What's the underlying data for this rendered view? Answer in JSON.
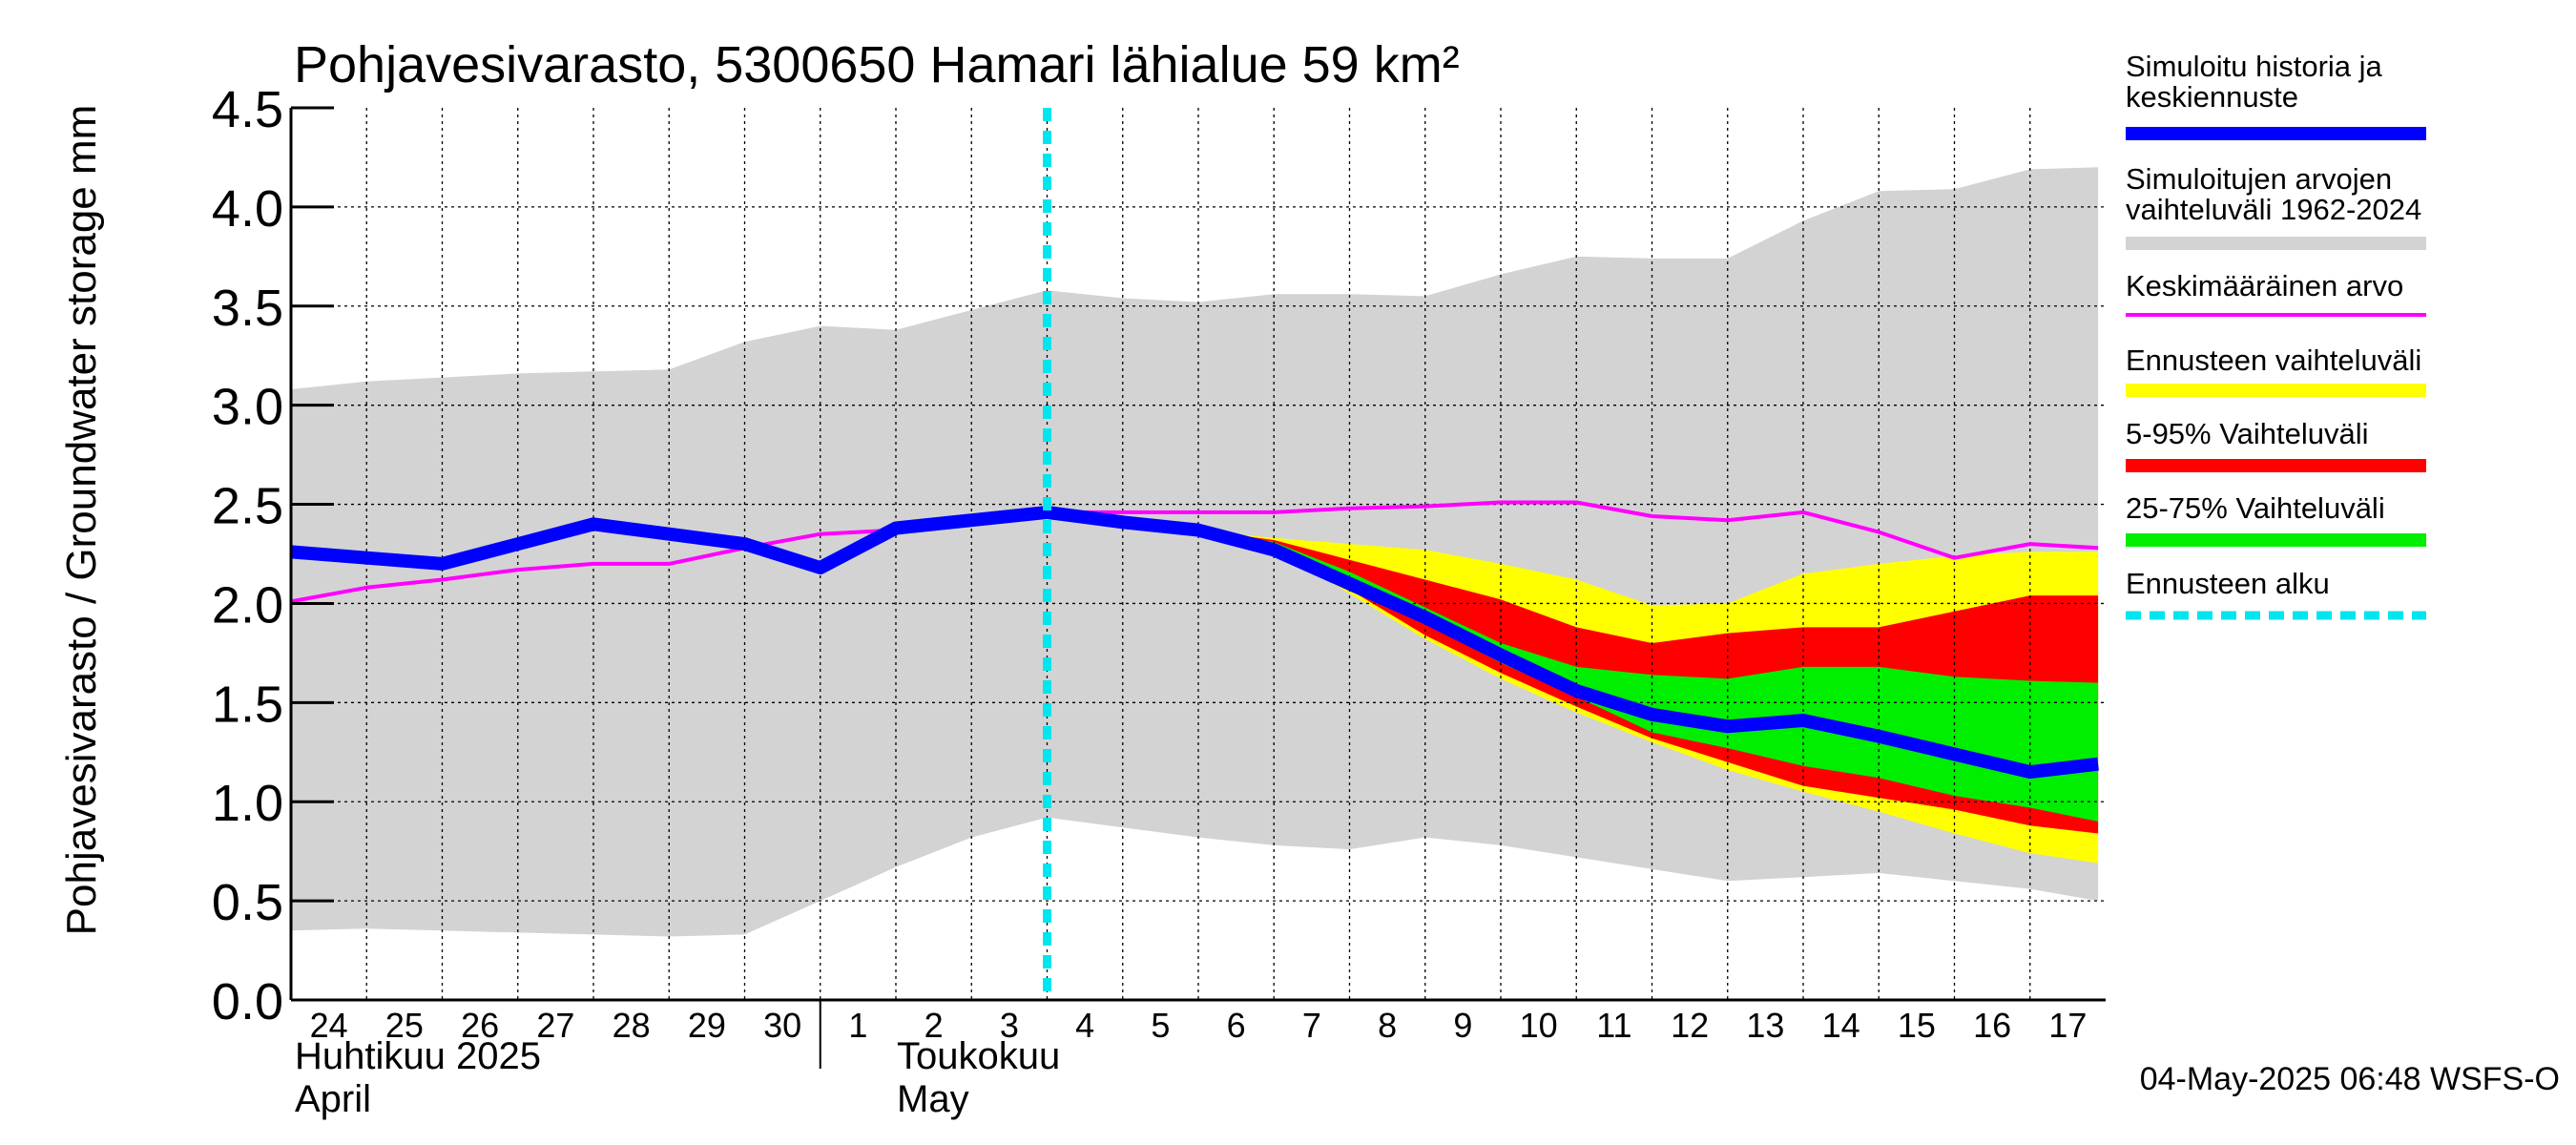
{
  "chart_data": {
    "type": "area",
    "title": "Pohjavesivarasto, 5300650 Hamari lähialue 59 km²",
    "ylabel": "Pohjavesivarasto / Groundwater storage   mm",
    "ylim": [
      0,
      4.5
    ],
    "yticks": [
      "0.0",
      "0.5",
      "1.0",
      "1.5",
      "2.0",
      "2.5",
      "3.0",
      "3.5",
      "4.0",
      "4.5"
    ],
    "x_day_labels": [
      "24",
      "25",
      "26",
      "27",
      "28",
      "29",
      "30",
      "1",
      "2",
      "3",
      "4",
      "5",
      "6",
      "7",
      "8",
      "9",
      "10",
      "11",
      "12",
      "13",
      "14",
      "15",
      "16",
      "17"
    ],
    "month_labels": [
      {
        "fi": "Huhtikuu  2025",
        "en": "April"
      },
      {
        "fi": "Toukokuu",
        "en": "May"
      }
    ],
    "footer": "04-May-2025 06:48 WSFS-O",
    "forecast_start_day": 10.0,
    "series": [
      {
        "name": "Simuloitujen arvojen vaihteluväli 1962-2024",
        "kind": "band",
        "color": "#d3d3d3",
        "x": [
          0,
          1,
          2,
          3,
          4,
          5,
          6,
          7,
          8,
          9,
          10,
          11,
          12,
          13,
          14,
          15,
          16,
          17,
          18,
          19,
          20,
          21,
          22,
          23,
          23.9
        ],
        "upper": [
          3.08,
          3.12,
          3.14,
          3.16,
          3.17,
          3.18,
          3.32,
          3.4,
          3.38,
          3.48,
          3.58,
          3.54,
          3.52,
          3.56,
          3.56,
          3.55,
          3.66,
          3.75,
          3.74,
          3.74,
          3.93,
          4.08,
          4.09,
          4.19,
          4.2
        ],
        "lower": [
          0.35,
          0.36,
          0.35,
          0.34,
          0.33,
          0.32,
          0.33,
          0.5,
          0.67,
          0.82,
          0.92,
          0.87,
          0.82,
          0.78,
          0.76,
          0.82,
          0.78,
          0.72,
          0.66,
          0.6,
          0.62,
          0.64,
          0.6,
          0.56,
          0.5
        ]
      },
      {
        "name": "Ennusteen vaihteluväli",
        "kind": "band",
        "color": "#ffff00",
        "x": [
          12,
          13,
          14,
          15,
          16,
          17,
          18,
          19,
          20,
          21,
          22,
          23,
          23.9
        ],
        "upper": [
          2.37,
          2.33,
          2.3,
          2.27,
          2.2,
          2.12,
          1.99,
          2.0,
          2.15,
          2.2,
          2.24,
          2.26,
          2.26
        ],
        "lower": [
          2.37,
          2.28,
          2.05,
          1.82,
          1.62,
          1.45,
          1.3,
          1.16,
          1.05,
          0.95,
          0.84,
          0.74,
          0.69
        ]
      },
      {
        "name": "5-95% Vaihteluväli",
        "kind": "band",
        "color": "#ff0000",
        "x": [
          12,
          13,
          14,
          15,
          16,
          17,
          18,
          19,
          20,
          21,
          22,
          23,
          23.9
        ],
        "upper": [
          2.37,
          2.32,
          2.22,
          2.12,
          2.02,
          1.88,
          1.8,
          1.85,
          1.88,
          1.88,
          1.96,
          2.04,
          2.04
        ],
        "lower": [
          2.37,
          2.27,
          2.07,
          1.84,
          1.65,
          1.48,
          1.32,
          1.2,
          1.08,
          1.02,
          0.96,
          0.88,
          0.84
        ]
      },
      {
        "name": "25-75% Vaihteluväli",
        "kind": "band",
        "color": "#00ee00",
        "x": [
          12,
          13,
          14,
          15,
          16,
          17,
          18,
          19,
          20,
          21,
          22,
          23,
          23.9
        ],
        "upper": [
          2.37,
          2.31,
          2.16,
          1.98,
          1.8,
          1.68,
          1.64,
          1.62,
          1.68,
          1.68,
          1.63,
          1.61,
          1.6
        ],
        "lower": [
          2.37,
          2.29,
          2.1,
          1.9,
          1.7,
          1.53,
          1.35,
          1.27,
          1.18,
          1.12,
          1.03,
          0.97,
          0.9
        ]
      },
      {
        "name": "Keskimääräinen arvo",
        "kind": "line",
        "color": "#ff00ff",
        "x": [
          0,
          1,
          2,
          3,
          4,
          5,
          6,
          7,
          8,
          9,
          10,
          11,
          12,
          13,
          14,
          15,
          16,
          17,
          18,
          19,
          20,
          21,
          22,
          23,
          23.9
        ],
        "values": [
          2.01,
          2.08,
          2.12,
          2.17,
          2.2,
          2.2,
          2.28,
          2.35,
          2.37,
          2.41,
          2.46,
          2.46,
          2.46,
          2.46,
          2.48,
          2.49,
          2.51,
          2.51,
          2.44,
          2.42,
          2.46,
          2.36,
          2.23,
          2.3,
          2.28
        ]
      },
      {
        "name": "Simuloitu historia ja keskiennuste",
        "kind": "line",
        "color": "#0000ff",
        "x": [
          0,
          1,
          2,
          3,
          4,
          5,
          6,
          7,
          8,
          9,
          10,
          11,
          12,
          13,
          14,
          15,
          16,
          17,
          18,
          19,
          20,
          21,
          22,
          23,
          23.9
        ],
        "values": [
          2.26,
          2.23,
          2.2,
          2.3,
          2.4,
          2.35,
          2.3,
          2.18,
          2.38,
          2.42,
          2.46,
          2.41,
          2.37,
          2.27,
          2.1,
          1.93,
          1.74,
          1.56,
          1.44,
          1.38,
          1.41,
          1.33,
          1.24,
          1.15,
          1.19
        ]
      }
    ],
    "legend": [
      {
        "label": "Simuloitu historia ja keskiennuste",
        "color": "#0000ff",
        "style": "thick"
      },
      {
        "label": "Simuloitujen arvojen vaihteluväli 1962-2024",
        "color": "#d3d3d3",
        "style": "thick"
      },
      {
        "label": "Keskimääräinen arvo",
        "color": "#ff00ff",
        "style": "thin"
      },
      {
        "label": "Ennusteen vaihteluväli",
        "color": "#ffff00",
        "style": "thick"
      },
      {
        "label": "5-95% Vaihteluväli",
        "color": "#ff0000",
        "style": "thick"
      },
      {
        "label": "25-75% Vaihteluväli",
        "color": "#00ee00",
        "style": "thick"
      },
      {
        "label": "Ennusteen alku",
        "color": "#00e5ee",
        "style": "dashed"
      }
    ]
  }
}
